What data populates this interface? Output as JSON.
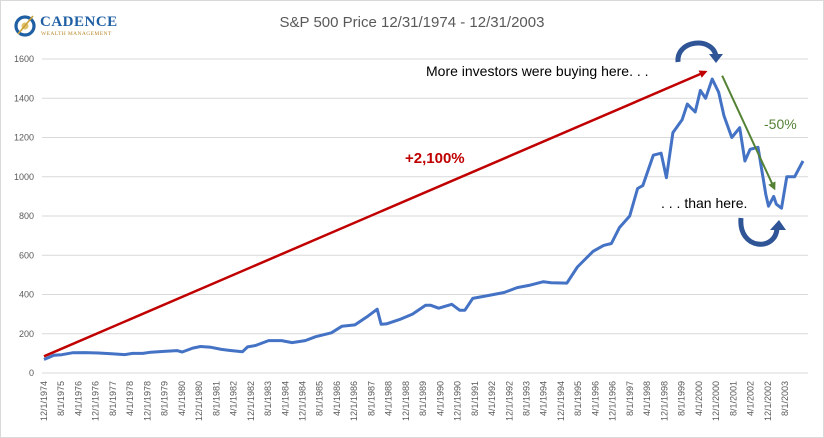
{
  "logo": {
    "name": "CADENCE",
    "subtitle": "WEALTH MANAGEMENT",
    "colors": {
      "primary": "#1f5fa3",
      "accent": "#c9a13b"
    }
  },
  "chart_data": {
    "type": "line",
    "title": "S&P 500 Price 12/31/1974 - 12/31/2003",
    "xlabel": "",
    "ylabel": "",
    "ylim": [
      0,
      1600
    ],
    "yticks": [
      0,
      200,
      400,
      600,
      800,
      1000,
      1200,
      1400,
      1600
    ],
    "grid": true,
    "legend": "none",
    "xtick_labels": [
      "12/1/1974",
      "8/1/1975",
      "4/1/1976",
      "12/1/1976",
      "8/1/1977",
      "4/1/1978",
      "12/1/1978",
      "8/1/1979",
      "4/1/1980",
      "12/1/1980",
      "8/1/1981",
      "4/1/1982",
      "12/1/1982",
      "8/1/1983",
      "4/1/1984",
      "12/1/1984",
      "8/1/1985",
      "4/1/1986",
      "12/1/1986",
      "8/1/1987",
      "4/1/1988",
      "12/1/1988",
      "8/1/1989",
      "4/1/1990",
      "12/1/1990",
      "8/1/1991",
      "4/1/1992",
      "12/1/1992",
      "8/1/1993",
      "4/1/1994",
      "12/1/1994",
      "8/1/1995",
      "4/1/1996",
      "12/1/1996",
      "8/1/1997",
      "4/1/1998",
      "12/1/1998",
      "8/1/1999",
      "4/1/2000",
      "12/1/2000",
      "8/1/2001",
      "4/1/2002",
      "12/1/2002",
      "8/1/2003"
    ],
    "series": [
      {
        "name": "S&P 500 Price",
        "color": "#4472c4",
        "x": [
          1974.92,
          1975.3,
          1975.6,
          1976.0,
          1976.5,
          1977.0,
          1977.5,
          1978.0,
          1978.3,
          1978.7,
          1979.0,
          1979.5,
          1980.0,
          1980.2,
          1980.6,
          1980.9,
          1981.3,
          1981.7,
          1982.0,
          1982.5,
          1982.7,
          1983.0,
          1983.5,
          1984.0,
          1984.4,
          1984.9,
          1985.3,
          1985.9,
          1986.3,
          1986.8,
          1987.3,
          1987.65,
          1987.8,
          1988.0,
          1988.5,
          1989.0,
          1989.5,
          1989.7,
          1990.0,
          1990.5,
          1990.8,
          1991.0,
          1991.3,
          1991.9,
          1992.5,
          1993.0,
          1993.5,
          1994.0,
          1994.3,
          1994.9,
          1995.3,
          1995.9,
          1996.3,
          1996.6,
          1996.9,
          1997.3,
          1997.6,
          1997.8,
          1998.2,
          1998.5,
          1998.7,
          1998.95,
          1999.3,
          1999.5,
          1999.8,
          2000.0,
          2000.2,
          2000.45,
          2000.7,
          2000.9,
          2001.2,
          2001.5,
          2001.7,
          2001.9,
          2002.2,
          2002.5,
          2002.6,
          2002.8,
          2002.9,
          2003.1,
          2003.3,
          2003.6,
          2003.92
        ],
        "y": [
          69,
          90,
          93,
          103,
          104,
          102,
          98,
          94,
          100,
          100,
          106,
          110,
          114,
          107,
          127,
          135,
          131,
          120,
          115,
          108,
          133,
          140,
          165,
          165,
          155,
          165,
          185,
          205,
          238,
          245,
          290,
          325,
          248,
          250,
          272,
          300,
          345,
          345,
          330,
          350,
          320,
          320,
          380,
          395,
          410,
          435,
          448,
          465,
          460,
          458,
          540,
          620,
          650,
          660,
          740,
          800,
          940,
          955,
          1110,
          1120,
          995,
          1225,
          1290,
          1370,
          1330,
          1440,
          1400,
          1498,
          1430,
          1310,
          1200,
          1250,
          1080,
          1140,
          1150,
          910,
          850,
          900,
          860,
          840,
          1000,
          1000,
          1080
        ]
      }
    ],
    "annotations": [
      {
        "id": "up-arrow",
        "text": "+2,100%",
        "color": "#c00000",
        "from": [
          1974.92,
          85
        ],
        "to": [
          2000.2,
          1535
        ]
      },
      {
        "id": "down-arrow",
        "text": "-50%",
        "color": "#548235",
        "from": [
          2000.45,
          1515
        ],
        "to": [
          2002.75,
          940
        ]
      },
      {
        "id": "top-note",
        "text": "More investors were buying here. . .",
        "color": "#000000"
      },
      {
        "id": "bottom-note",
        "text": ". . . than here.",
        "color": "#000000"
      },
      {
        "id": "peak-curved-arrow",
        "color": "#2f5597"
      },
      {
        "id": "trough-curved-arrow",
        "color": "#2f5597"
      }
    ]
  }
}
